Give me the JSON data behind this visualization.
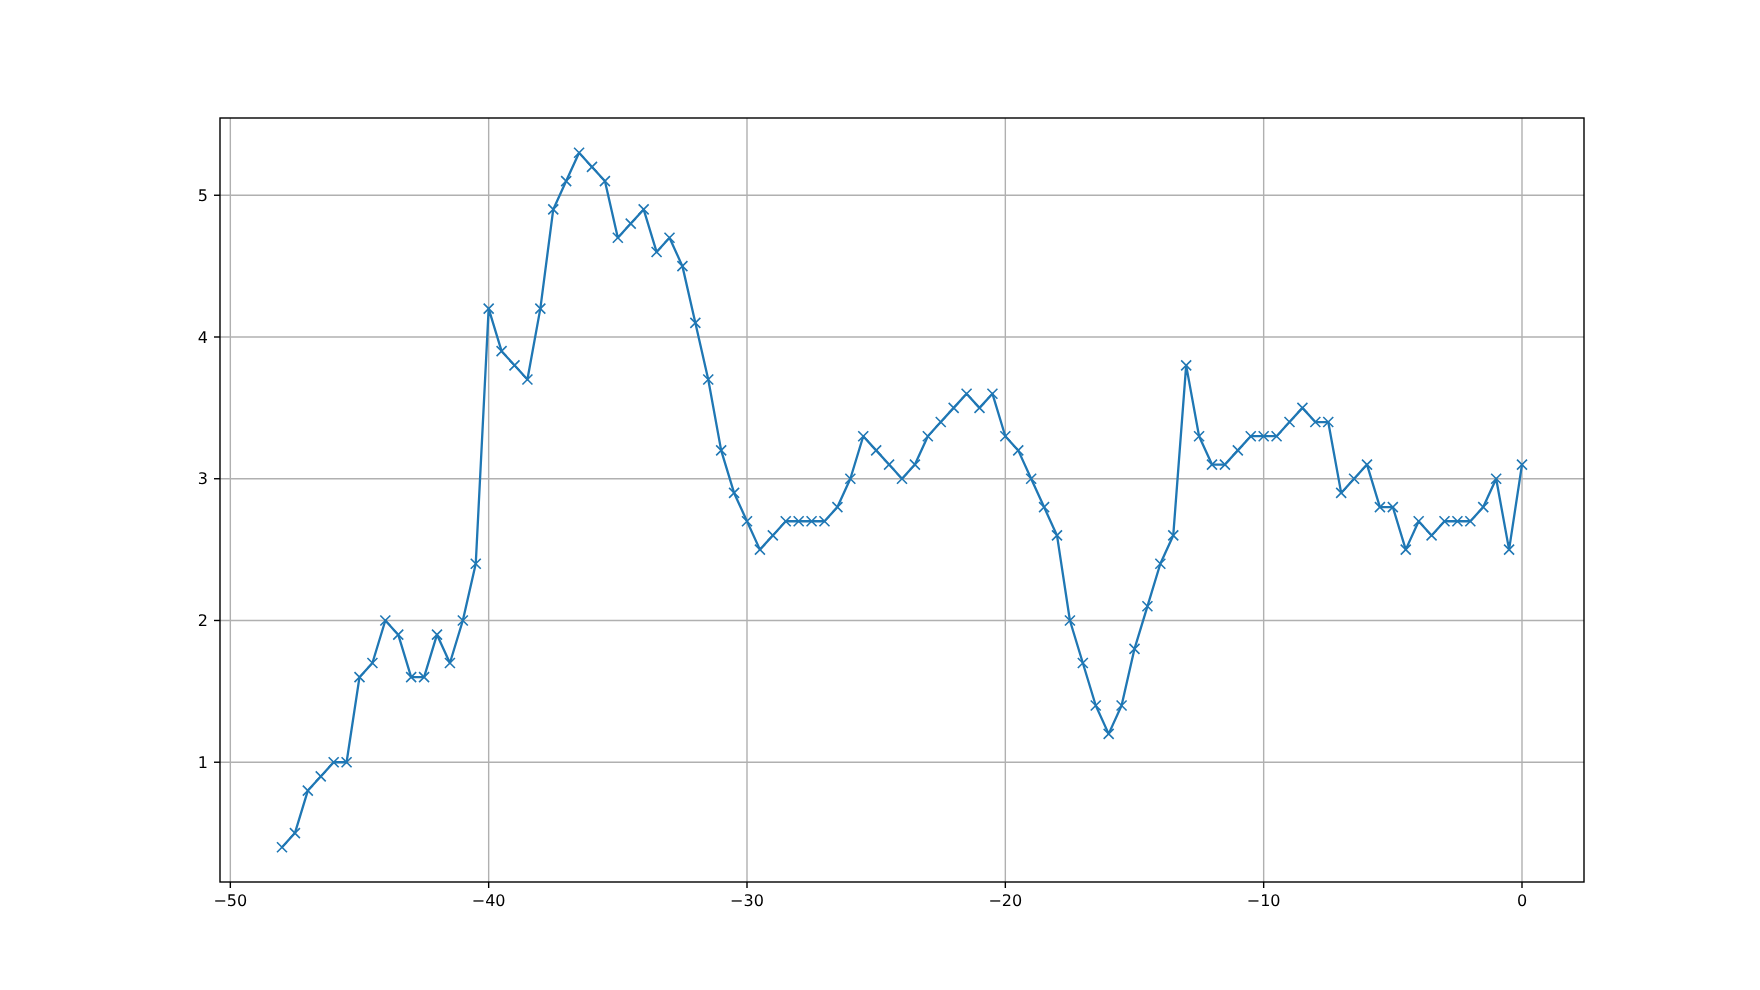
{
  "chart_data": {
    "type": "line",
    "color": "#1f77b4",
    "marker": "cross",
    "line_style": "solid",
    "grid": true,
    "x": [
      -48,
      -47.5,
      -47,
      -46.5,
      -46,
      -45.5,
      -45,
      -44.5,
      -44,
      -43.5,
      -43,
      -42.5,
      -42,
      -41.5,
      -41,
      -40.5,
      -40,
      -39.5,
      -39,
      -38.5,
      -38,
      -37.5,
      -37,
      -36.5,
      -36,
      -35.5,
      -35,
      -34.5,
      -34,
      -33.5,
      -33,
      -32.5,
      -32,
      -31.5,
      -31,
      -30.5,
      -30,
      -29.5,
      -29,
      -28.5,
      -28,
      -27.5,
      -27,
      -26.5,
      -26,
      -25.5,
      -25,
      -24.5,
      -24,
      -23.5,
      -23,
      -22.5,
      -22,
      -21.5,
      -21,
      -20.5,
      -20,
      -19.5,
      -19,
      -18.5,
      -18,
      -17.5,
      -17,
      -16.5,
      -16,
      -15.5,
      -15,
      -14.5,
      -14,
      -13.5,
      -13,
      -12.5,
      -12,
      -11.5,
      -11,
      -10.5,
      -10,
      -9.5,
      -9,
      -8.5,
      -8,
      -7.5,
      -7,
      -6.5,
      -6,
      -5.5,
      -5,
      -4.5,
      -4,
      -3.5,
      -3,
      -2.5,
      -2,
      -1.5,
      -1,
      -0.5,
      0
    ],
    "values": [
      0.4,
      0.5,
      0.8,
      0.9,
      1.0,
      1.0,
      1.6,
      1.7,
      2.0,
      1.9,
      1.6,
      1.6,
      1.9,
      1.7,
      2.0,
      2.4,
      4.2,
      3.9,
      3.8,
      3.7,
      4.2,
      4.9,
      5.1,
      5.3,
      5.2,
      5.1,
      4.7,
      4.8,
      4.9,
      4.6,
      4.7,
      4.5,
      4.1,
      3.7,
      3.2,
      2.9,
      2.7,
      2.5,
      2.6,
      2.7,
      2.7,
      2.7,
      2.7,
      2.8,
      3.0,
      3.3,
      3.2,
      3.1,
      3.0,
      3.1,
      3.3,
      3.4,
      3.5,
      3.6,
      3.5,
      3.6,
      3.3,
      3.2,
      3.0,
      2.8,
      2.6,
      2.0,
      1.7,
      1.4,
      1.2,
      1.4,
      1.8,
      2.1,
      2.4,
      2.6,
      3.8,
      3.3,
      3.1,
      3.1,
      3.2,
      3.3,
      3.3,
      3.3,
      3.4,
      3.5,
      3.4,
      3.4,
      2.9,
      3.0,
      3.1,
      2.8,
      2.8,
      2.5,
      2.7,
      2.6,
      2.7,
      2.7,
      2.7,
      2.8,
      3.0,
      2.5,
      3.1
    ],
    "xlim": [
      -50.4,
      2.4
    ],
    "ylim": [
      0.155,
      5.545
    ],
    "xticks": [
      {
        "value": -50,
        "label": "−50"
      },
      {
        "value": -40,
        "label": "−40"
      },
      {
        "value": -30,
        "label": "−30"
      },
      {
        "value": -20,
        "label": "−20"
      },
      {
        "value": -10,
        "label": "−10"
      },
      0
    ],
    "yticks": [
      1,
      2,
      3,
      4,
      5
    ]
  }
}
